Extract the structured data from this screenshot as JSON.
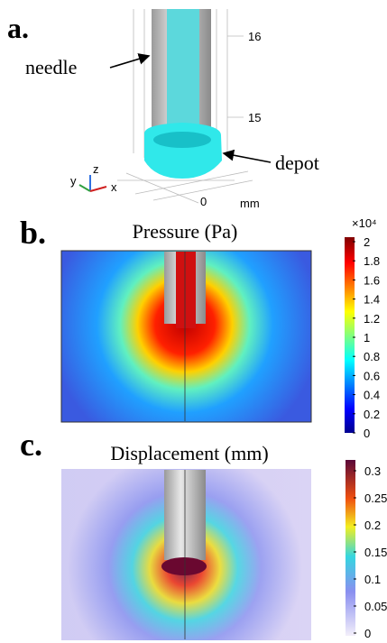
{
  "panel_a": {
    "label": "a.",
    "needle_label": "needle",
    "depot_label": "depot",
    "scale_ticks": [
      "16",
      "15",
      "0"
    ],
    "unit": "mm",
    "axes": [
      "z",
      "y",
      "x"
    ]
  },
  "panel_b": {
    "label": "b.",
    "title": "Pressure (Pa)",
    "colorbar_multiplier": "×10⁴",
    "colorbar_ticks": [
      "2",
      "1.8",
      "1.6",
      "1.4",
      "1.2",
      "1",
      "0.8",
      "0.6",
      "0.4",
      "0.2",
      "0"
    ]
  },
  "panel_c": {
    "label": "c.",
    "title": "Displacement (mm)",
    "colorbar_ticks": [
      "0.3",
      "0.25",
      "0.2",
      "0.15",
      "0.1",
      "0.05",
      "0"
    ]
  }
}
